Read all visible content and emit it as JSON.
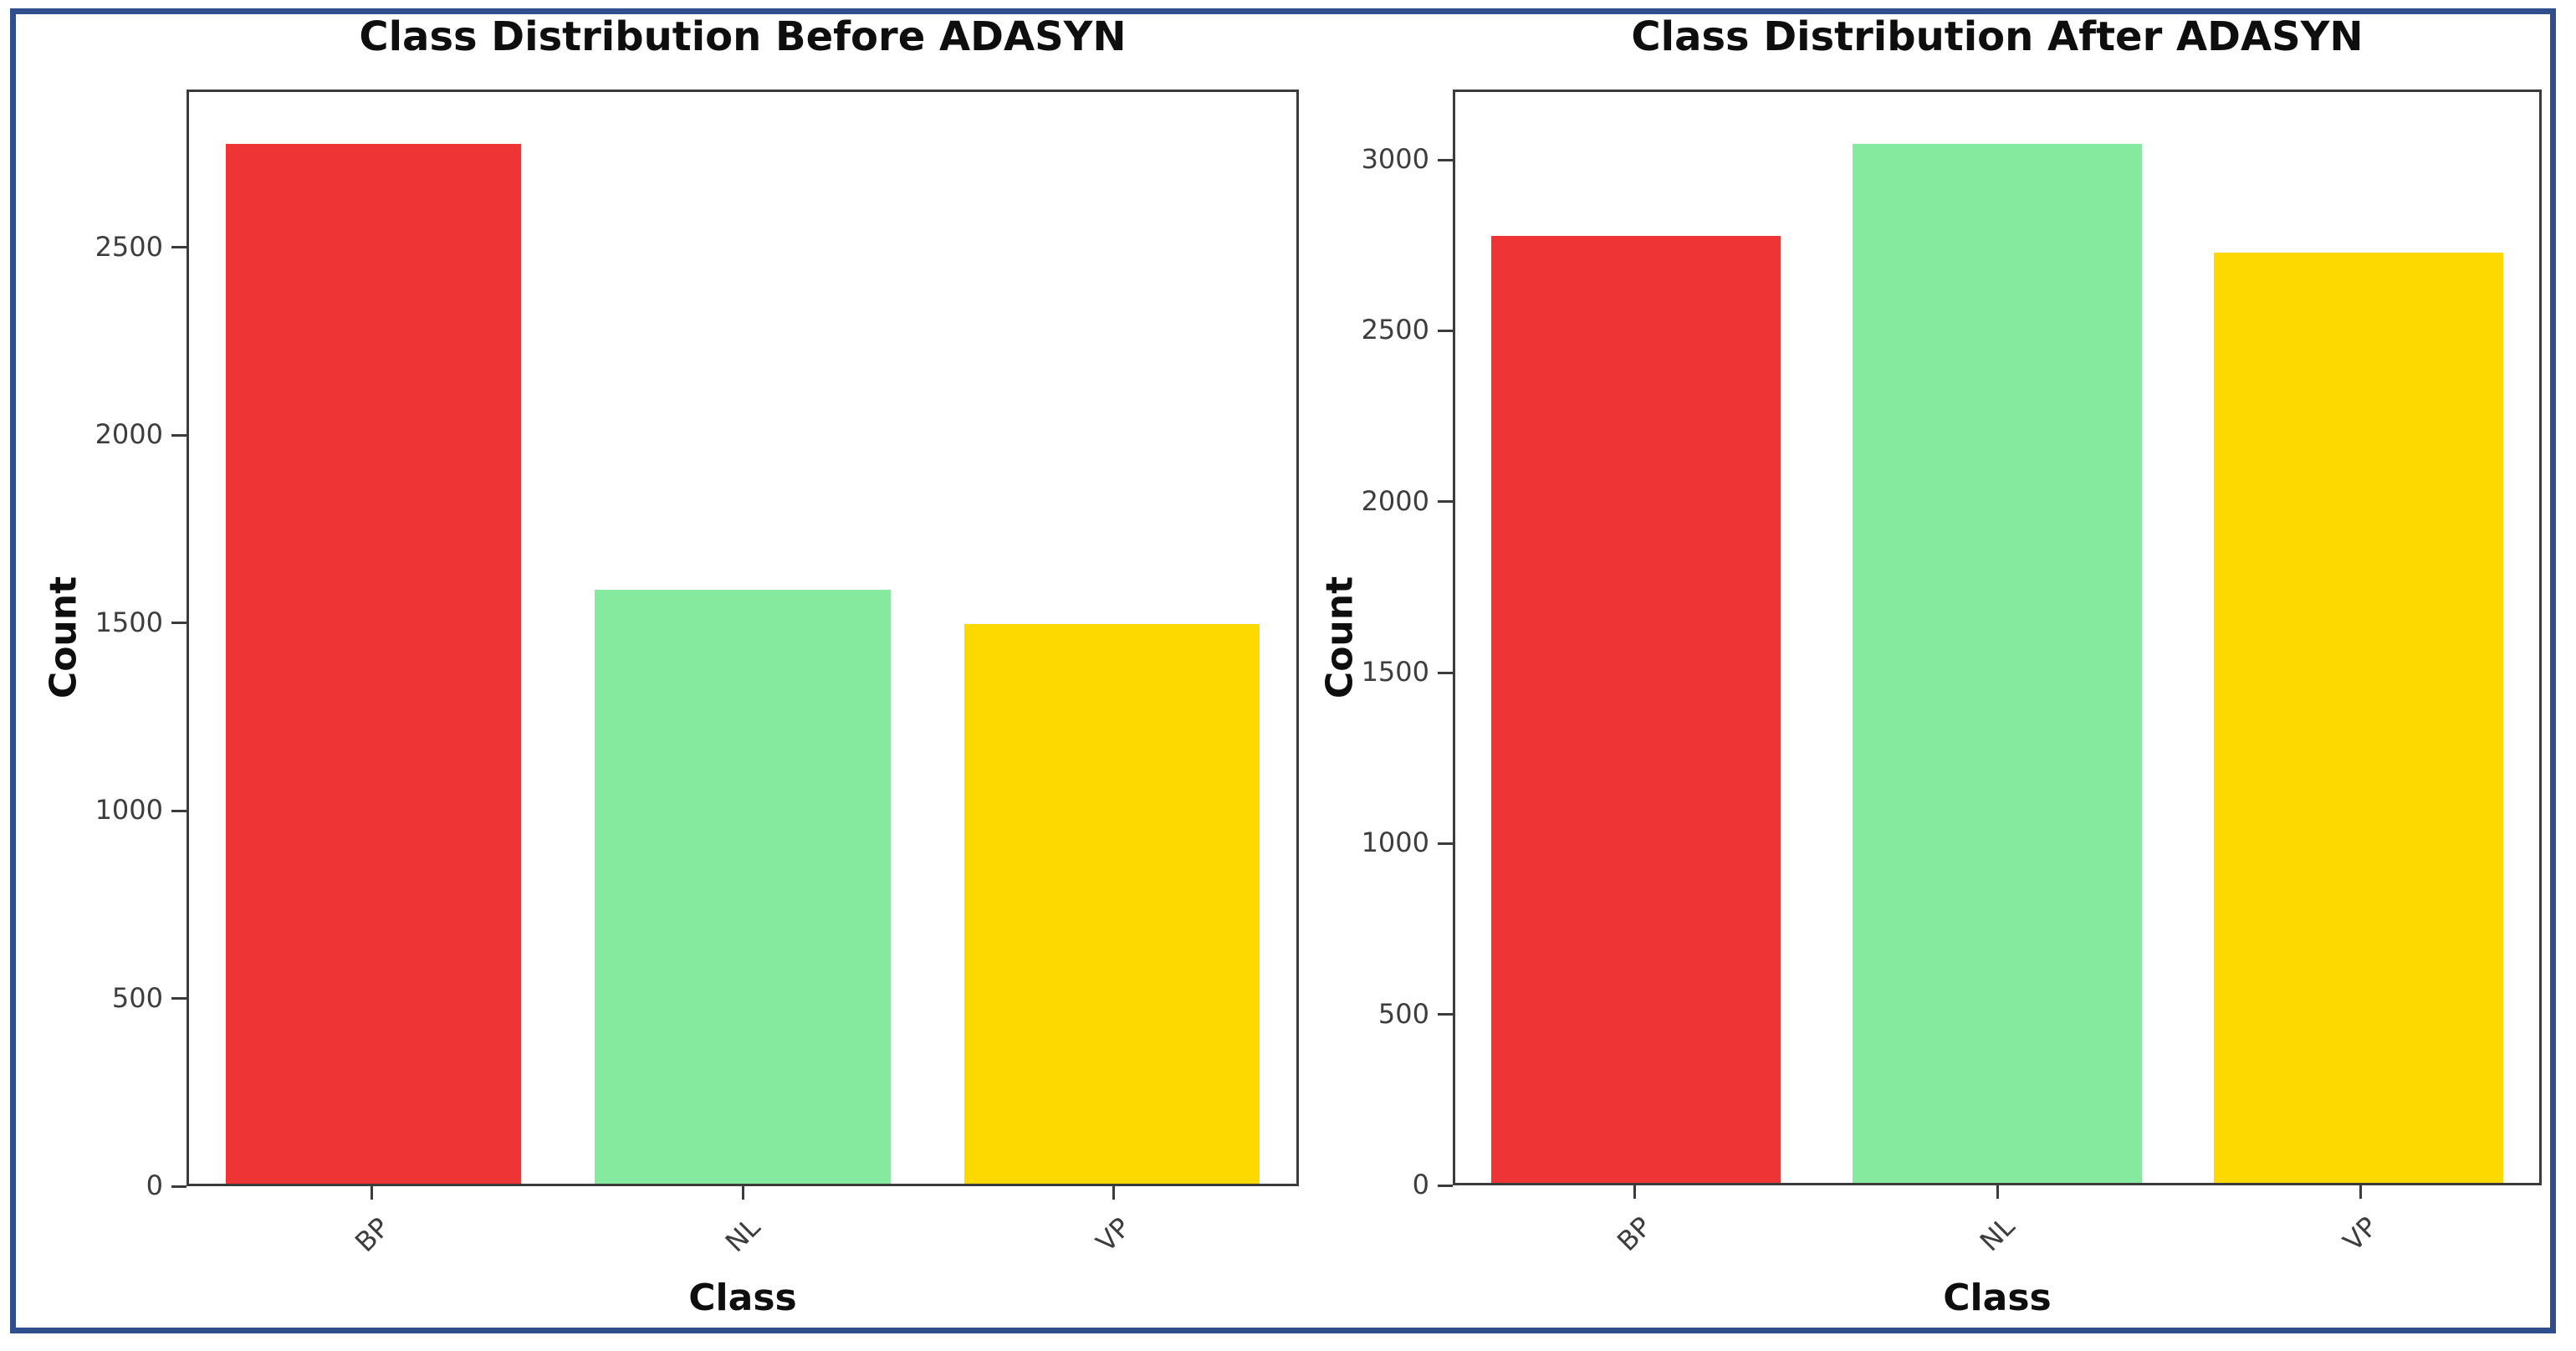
{
  "figure": {
    "background_color": "#ffffff",
    "border_color": "#2e4e8c",
    "spine_color": "#3b3b3b",
    "tick_text_color": "#3d3d3d"
  },
  "chart_data": [
    {
      "type": "bar",
      "title": "Class Distribution Before ADASYN",
      "xlabel": "Class",
      "ylabel": "Count",
      "categories": [
        "BP",
        "NL",
        "VP"
      ],
      "values": [
        2782,
        1589,
        1497
      ],
      "bar_colors": [
        "#ee3435",
        "#85ea9e",
        "#fed900"
      ],
      "ylim": [
        0,
        2921
      ],
      "yticks": [
        0,
        500,
        1000,
        1500,
        2000,
        2500
      ],
      "xtick_rotation": 45,
      "grid": false,
      "bar_width_fraction": 0.8
    },
    {
      "type": "bar",
      "title": "Class Distribution After ADASYN",
      "xlabel": "Class",
      "ylabel": "Count",
      "categories": [
        "BP",
        "NL",
        "VP"
      ],
      "values": [
        2782,
        3053,
        2733
      ],
      "bar_colors": [
        "#ee3435",
        "#85ea9e",
        "#fed900"
      ],
      "ylim": [
        0,
        3206
      ],
      "yticks": [
        0,
        500,
        1000,
        1500,
        2000,
        2500,
        3000
      ],
      "xtick_rotation": 45,
      "grid": false,
      "bar_width_fraction": 0.8
    }
  ]
}
